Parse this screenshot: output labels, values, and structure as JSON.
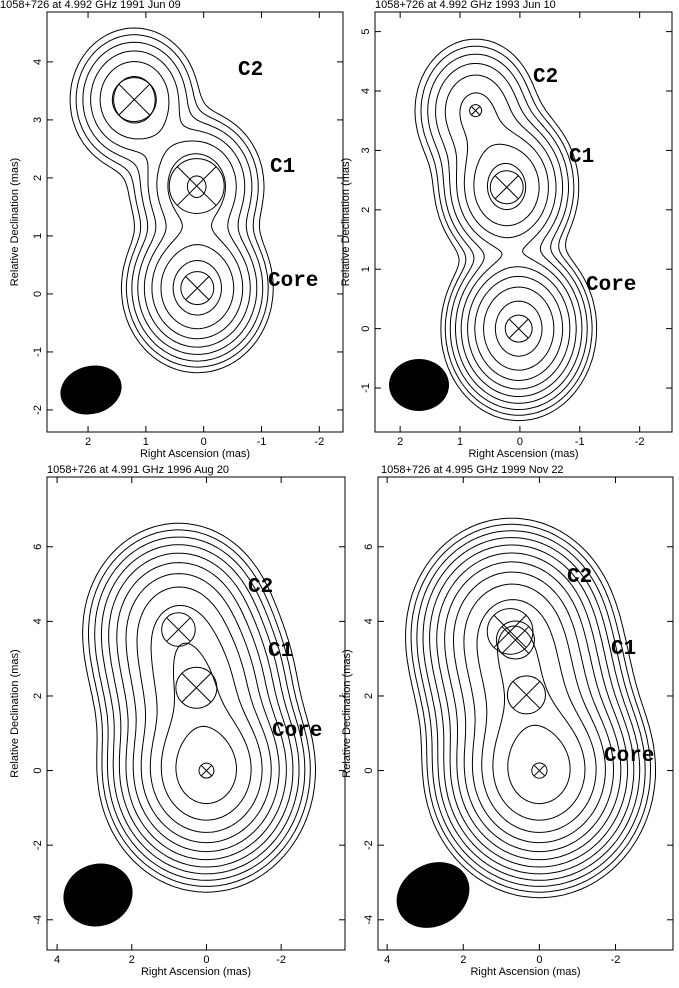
{
  "chart_data": [
    {
      "type": "contour",
      "title": "1058+726 at 4.992 GHz 1991 Jun 09",
      "xlabel": "Right Ascension  (mas)",
      "ylabel": "Relative Declination  (mas)",
      "xlim": [
        2.71,
        -2.41
      ],
      "ylim": [
        -2.38,
        4.86
      ],
      "xticks": [
        2,
        1,
        0,
        -1,
        -2
      ],
      "yticks": [
        -2,
        -1,
        0,
        1,
        2,
        3,
        4
      ],
      "labels": [
        "C2",
        "C1",
        "Core"
      ],
      "components": [
        {
          "x": 1.2,
          "y": 3.35,
          "diameter": 0.76
        },
        {
          "x": 0.12,
          "y": 1.86,
          "diameter": 0.95
        },
        {
          "x": 0.11,
          "y": 0.1,
          "diameter": 0.57
        }
      ]
    },
    {
      "type": "contour",
      "title": "1058+726 at 4.992 GHz 1993 Jun 10",
      "xlabel": "Right Ascension  (mas)",
      "ylabel": "Relative Declination  (mas)",
      "xlim": [
        2.42,
        -2.54
      ],
      "ylim": [
        -1.74,
        5.33
      ],
      "xticks": [
        2,
        1,
        0,
        -1,
        -2
      ],
      "yticks": [
        -1,
        0,
        1,
        2,
        3,
        4,
        5
      ],
      "labels": [
        "C2",
        "C1",
        "Core"
      ],
      "components": [
        {
          "x": 0.74,
          "y": 3.67,
          "diameter": 0.2
        },
        {
          "x": 0.22,
          "y": 2.38,
          "diameter": 0.55
        },
        {
          "x": 0.02,
          "y": 0,
          "diameter": 0.45
        }
      ]
    },
    {
      "type": "contour",
      "title": "1058+726 at 4.991 GHz 1996 Aug 20",
      "xlabel": "Right Ascension  (mas)",
      "ylabel": "Relative Declination  (mas)",
      "xlim": [
        4.27,
        -3.71
      ],
      "ylim": [
        -4.81,
        7.87
      ],
      "xticks": [
        4,
        2,
        0,
        -2
      ],
      "yticks": [
        -4,
        -2,
        0,
        2,
        4,
        6
      ],
      "labels": [
        "C2",
        "C1",
        "Core"
      ],
      "components": [
        {
          "x": 0.75,
          "y": 3.78,
          "diameter": 0.9
        },
        {
          "x": 0.27,
          "y": 2.22,
          "diameter": 1.1
        },
        {
          "x": 0,
          "y": 0,
          "diameter": 0.4
        }
      ]
    },
    {
      "type": "contour",
      "title": "1058+726 at 4.995 GHz 1999 Nov 22",
      "xlabel": "Right Ascension  (mas)",
      "ylabel": "Relative Declination  (mas)",
      "xlim": [
        4.24,
        -3.51
      ],
      "ylim": [
        -4.81,
        7.87
      ],
      "xticks": [
        4,
        2,
        0,
        -2
      ],
      "yticks": [
        -4,
        -2,
        0,
        2,
        4,
        6
      ],
      "labels": [
        "C2",
        "C1",
        "Core"
      ],
      "components": [
        {
          "x": 0.77,
          "y": 3.73,
          "diameter": 1.2
        },
        {
          "x": 0.63,
          "y": 3.5,
          "diameter": 1.0
        },
        {
          "x": 0.34,
          "y": 2.03,
          "diameter": 1.0
        },
        {
          "x": 0,
          "y": 0,
          "diameter": 0.4
        }
      ]
    }
  ]
}
